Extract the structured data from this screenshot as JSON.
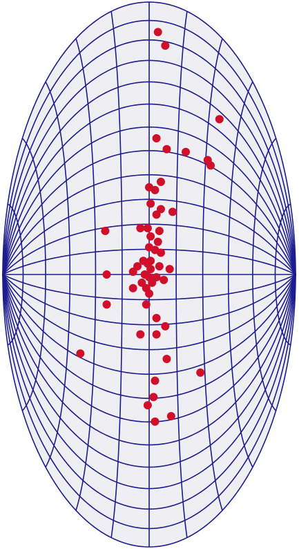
{
  "chart_data": {
    "type": "scatter",
    "color": "#d0102a",
    "grid": true,
    "xlim": [
      -1,
      1
    ],
    "ylim": [
      -1,
      1
    ],
    "x": [
      0.06,
      0.11,
      0.48,
      0.05,
      0.12,
      0.25,
      0.4,
      0.42,
      0.08,
      0.0,
      0.04,
      0.01,
      0.08,
      0.16,
      0.05,
      -0.3,
      -0.06,
      -0.01,
      0.07,
      0.01,
      0.06,
      0.0,
      0.04,
      0.08,
      0.01,
      -0.04,
      -0.01,
      -0.08,
      0.07,
      -0.11,
      0.01,
      0.14,
      -0.03,
      0.0,
      0.05,
      -0.29,
      -0.05,
      0.02,
      0.1,
      -0.02,
      -0.11,
      0.0,
      -0.02,
      -0.29,
      0.05,
      0.11,
      -0.06,
      0.05,
      -0.47,
      0.12,
      0.35,
      0.04,
      0.03,
      -0.01,
      0.15,
      0.04
    ],
    "values": [
      0.89,
      0.84,
      0.57,
      0.5,
      0.46,
      0.45,
      0.42,
      0.4,
      0.34,
      0.32,
      0.31,
      0.26,
      0.24,
      0.23,
      0.22,
      0.16,
      0.17,
      0.17,
      0.16,
      0.14,
      0.12,
      0.1,
      0.09,
      0.08,
      0.05,
      0.05,
      0.04,
      0.03,
      0.03,
      0.01,
      0.02,
      0.02,
      0.0,
      -0.01,
      -0.01,
      0.0,
      -0.03,
      -0.03,
      -0.02,
      -0.05,
      -0.05,
      -0.07,
      -0.11,
      -0.11,
      -0.16,
      -0.19,
      -0.22,
      -0.22,
      -0.29,
      -0.31,
      -0.36,
      -0.39,
      -0.45,
      -0.48,
      -0.52,
      -0.54
    ]
  }
}
